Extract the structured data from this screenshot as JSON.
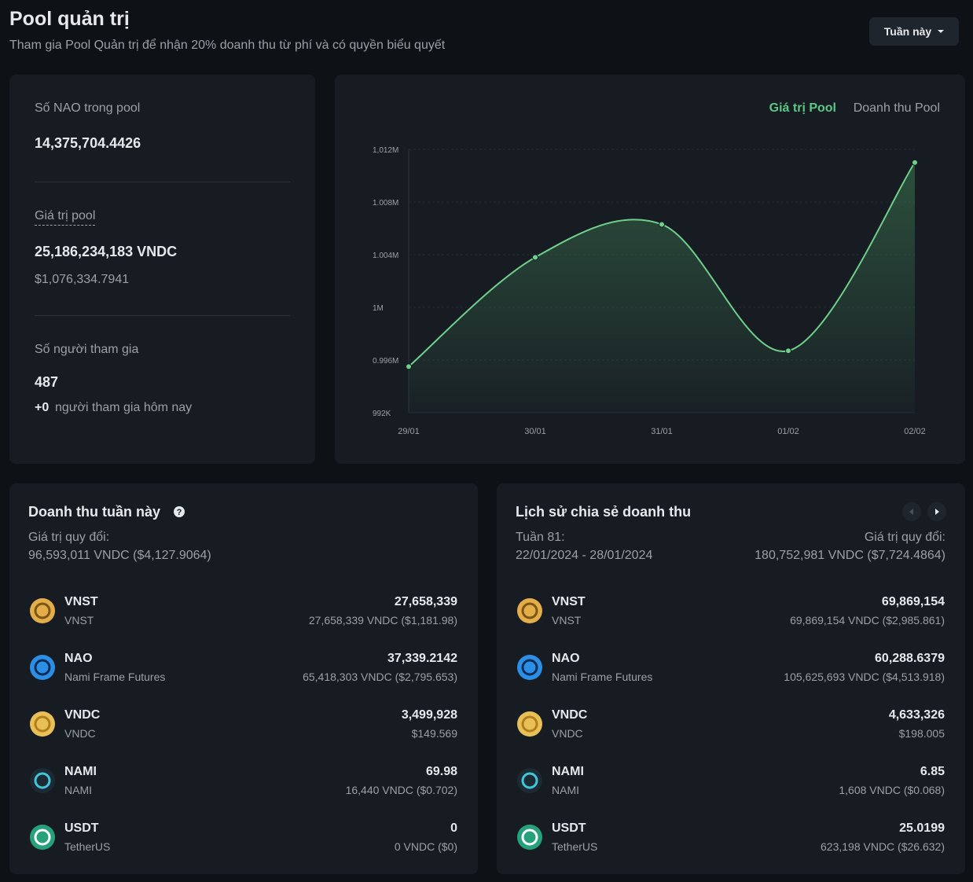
{
  "header": {
    "title": "Pool quản trị",
    "subtitle": "Tham gia Pool Quản trị để nhận 20% doanh thu từ phí và có quyền biểu quyết",
    "period_button": "Tuần này"
  },
  "stats": [
    {
      "label": "Số NAO trong pool",
      "value": "14,375,704.4426"
    },
    {
      "label": "Giá trị pool",
      "value": "25,186,234,183 VNDC",
      "sub": "$1,076,334.7941"
    },
    {
      "label": "Số người tham gia",
      "value": "487",
      "sub_prefix": "+0",
      "sub": "người tham gia hôm nay"
    }
  ],
  "chart_tabs": [
    "Giá trị Pool",
    "Doanh thu Pool"
  ],
  "chart_data": {
    "type": "line",
    "categories": [
      "29/01",
      "30/01",
      "31/01",
      "01/02",
      "02/02"
    ],
    "values": [
      995500,
      1003800,
      1006300,
      996700,
      1011000
    ],
    "color": "#6fcf8c",
    "ylim": [
      992000,
      1012000
    ],
    "yticks": [
      {
        "value": 992000,
        "label": "992K"
      },
      {
        "value": 996000,
        "label": "0.996M"
      },
      {
        "value": 1000000,
        "label": "1M"
      },
      {
        "value": 1004000,
        "label": "1.004M"
      },
      {
        "value": 1008000,
        "label": "1.008M"
      },
      {
        "value": 1012000,
        "label": "1,012M"
      }
    ],
    "grid": true
  },
  "revenue_week": {
    "title": "Doanh thu tuần này",
    "label": "Giá trị quy đổi:",
    "total": "96,593,011 VNDC ($4,127.9064)",
    "assets": [
      {
        "symbol": "VNST",
        "name": "VNST",
        "amount": "27,658,339",
        "detail": "27,658,339 VNDC ($1,181.98)"
      },
      {
        "symbol": "NAO",
        "name": "Nami Frame Futures",
        "amount": "37,339.2142",
        "detail": "65,418,303 VNDC ($2,795.653)"
      },
      {
        "symbol": "VNDC",
        "name": "VNDC",
        "amount": "3,499,928",
        "detail": "$149.569"
      },
      {
        "symbol": "NAMI",
        "name": "NAMI",
        "amount": "69.98",
        "detail": "16,440 VNDC ($0.702)"
      },
      {
        "symbol": "USDT",
        "name": "TetherUS",
        "amount": "0",
        "detail": "0 VNDC ($0)"
      }
    ]
  },
  "history": {
    "title": "Lịch sử chia sẻ doanh thu",
    "week": "Tuần 81:",
    "range": "22/01/2024 - 28/01/2024",
    "label": "Giá trị quy đổi:",
    "total": "180,752,981 VNDC ($7,724.4864)",
    "assets": [
      {
        "symbol": "VNST",
        "name": "VNST",
        "amount": "69,869,154",
        "detail": "69,869,154 VNDC ($2,985.861)"
      },
      {
        "symbol": "NAO",
        "name": "Nami Frame Futures",
        "amount": "60,288.6379",
        "detail": "105,625,693 VNDC ($4,513.918)"
      },
      {
        "symbol": "VNDC",
        "name": "VNDC",
        "amount": "4,633,326",
        "detail": "$198.005"
      },
      {
        "symbol": "NAMI",
        "name": "NAMI",
        "amount": "6.85",
        "detail": "1,608 VNDC ($0.068)"
      },
      {
        "symbol": "USDT",
        "name": "TetherUS",
        "amount": "25.0199",
        "detail": "623,198 VNDC ($26.632)"
      }
    ]
  }
}
